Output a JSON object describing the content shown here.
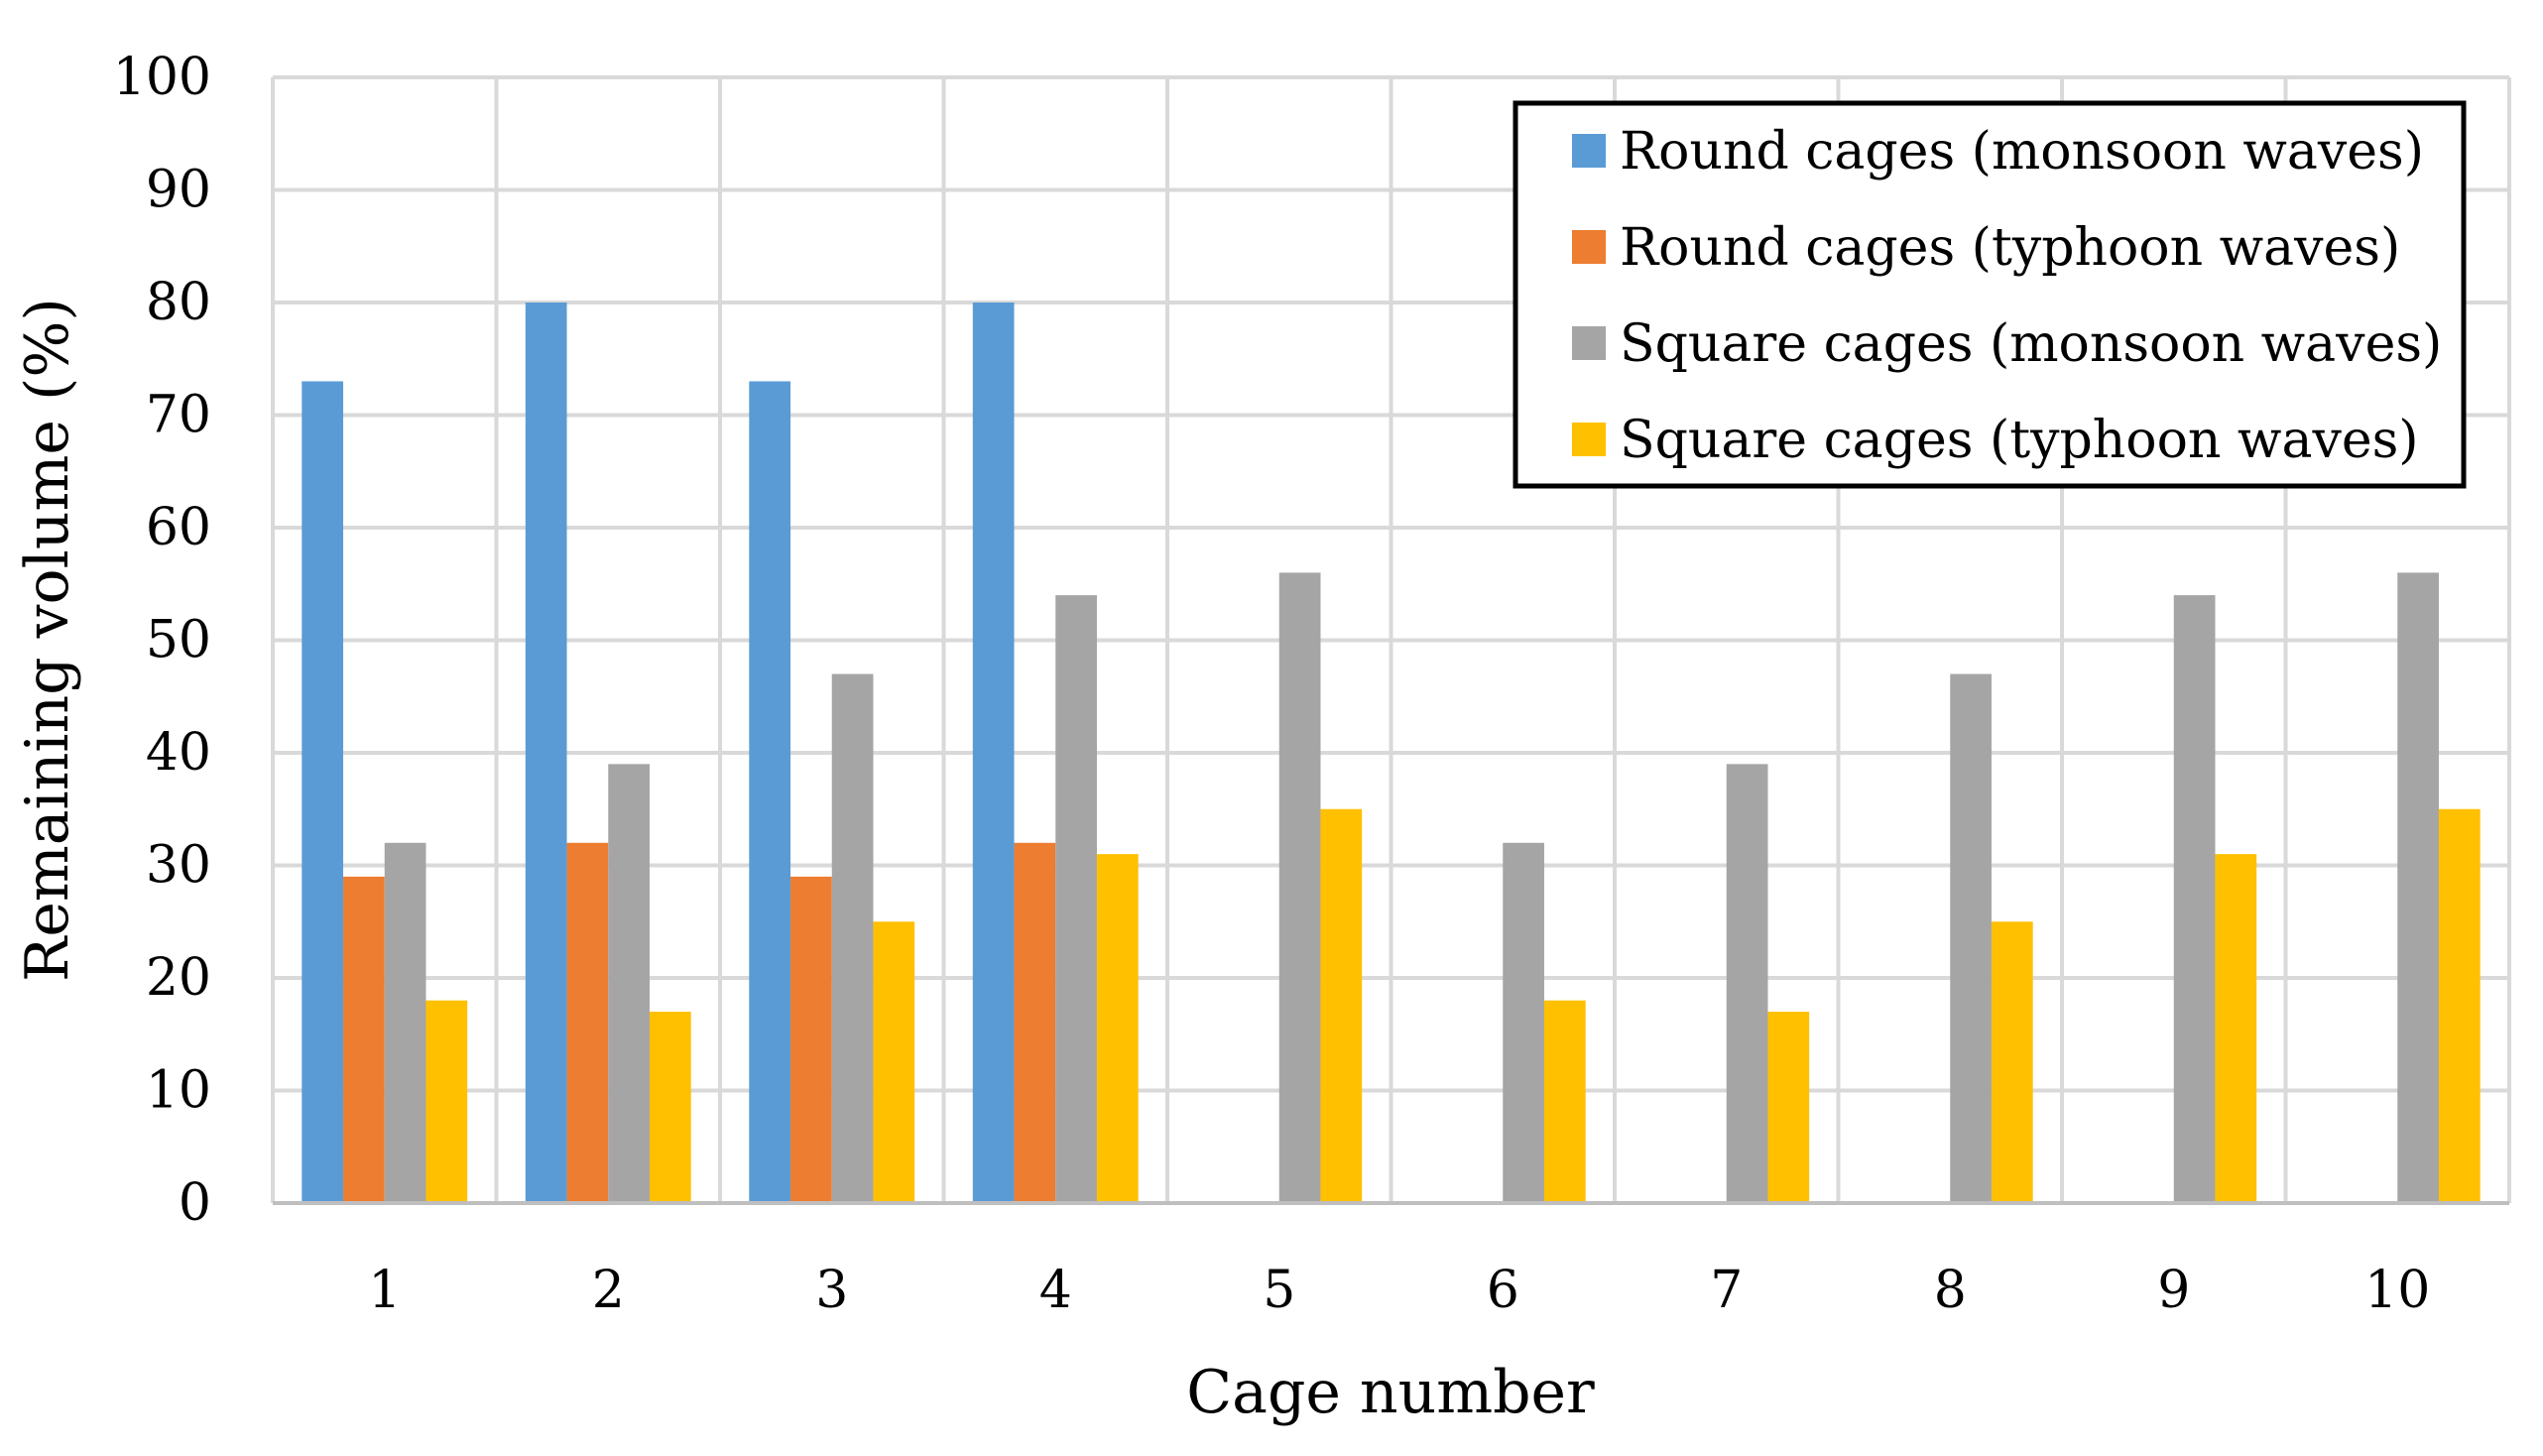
{
  "chart_data": {
    "type": "bar",
    "title": "",
    "xlabel": "Cage number",
    "ylabel": "Remaining volume (%)",
    "ylim": [
      0,
      100
    ],
    "yticks": [
      0,
      10,
      20,
      30,
      40,
      50,
      60,
      70,
      80,
      90,
      100
    ],
    "grid": true,
    "legend_position": "top-right",
    "categories": [
      "1",
      "2",
      "3",
      "4",
      "5",
      "6",
      "7",
      "8",
      "9",
      "10"
    ],
    "series": [
      {
        "name": "Round cages (monsoon waves)",
        "color": "#5B9BD5",
        "values": [
          73,
          80,
          73,
          80,
          0,
          0,
          0,
          0,
          0,
          0
        ]
      },
      {
        "name": "Round cages (typhoon waves)",
        "color": "#ED7D31",
        "values": [
          29,
          32,
          29,
          32,
          0,
          0,
          0,
          0,
          0,
          0
        ]
      },
      {
        "name": "Square cages (monsoon waves)",
        "color": "#A5A5A5",
        "values": [
          32,
          39,
          47,
          54,
          56,
          32,
          39,
          47,
          54,
          56
        ]
      },
      {
        "name": "Square cages (typhoon waves)",
        "color": "#FFC000",
        "values": [
          18,
          17,
          25,
          31,
          35,
          18,
          17,
          25,
          31,
          35
        ]
      }
    ]
  }
}
